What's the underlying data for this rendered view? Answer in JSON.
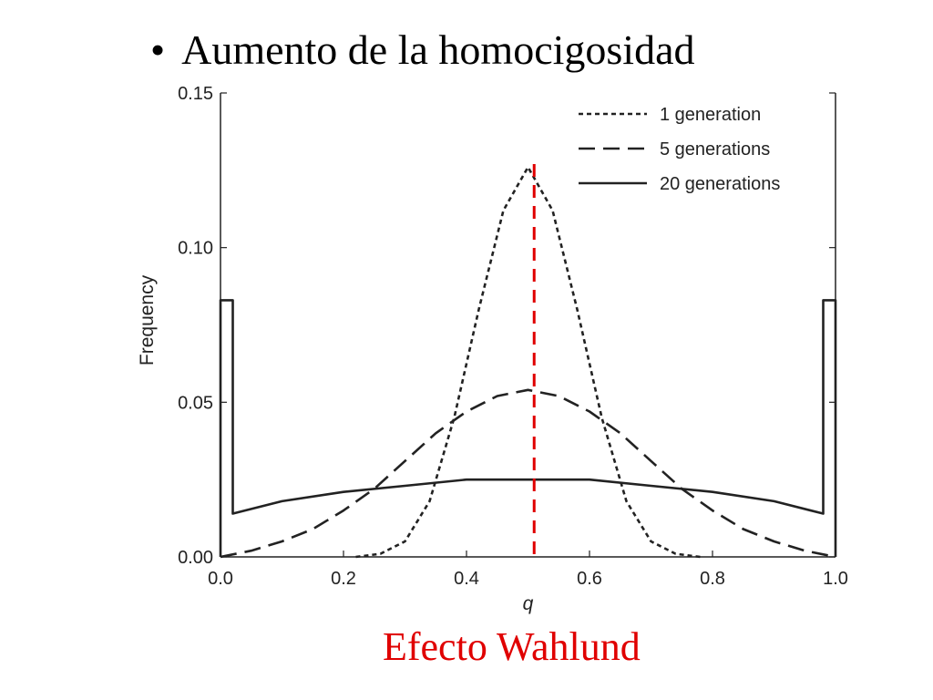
{
  "slide": {
    "bullet": "•",
    "title": "Aumento de la homocigosidad",
    "caption": "Efecto Wahlund"
  },
  "colors": {
    "caption": "#e00000",
    "marker": "#e00000",
    "ink": "#222222"
  },
  "chart_data": {
    "type": "line",
    "title": "",
    "xlabel": "q",
    "ylabel": "Frequency",
    "xlim": [
      0.0,
      1.0
    ],
    "ylim": [
      0.0,
      0.15
    ],
    "xticks": [
      "0.0",
      "0.2",
      "0.4",
      "0.6",
      "0.8",
      "1.0"
    ],
    "yticks": [
      "0.00",
      "0.05",
      "0.10",
      "0.15"
    ],
    "grid": false,
    "legend_position": "top-right",
    "series": [
      {
        "name": "1 generation",
        "style": "dotted",
        "x": [
          0.22,
          0.26,
          0.3,
          0.34,
          0.38,
          0.42,
          0.46,
          0.5,
          0.54,
          0.58,
          0.62,
          0.66,
          0.7,
          0.74,
          0.78
        ],
        "y": [
          0.0,
          0.001,
          0.005,
          0.018,
          0.045,
          0.08,
          0.112,
          0.126,
          0.112,
          0.08,
          0.045,
          0.018,
          0.005,
          0.001,
          0.0
        ]
      },
      {
        "name": "5 generations",
        "style": "dashed",
        "x": [
          0.0,
          0.05,
          0.1,
          0.15,
          0.2,
          0.25,
          0.3,
          0.35,
          0.4,
          0.45,
          0.5,
          0.55,
          0.6,
          0.65,
          0.7,
          0.75,
          0.8,
          0.85,
          0.9,
          0.95,
          1.0
        ],
        "y": [
          0.0,
          0.002,
          0.005,
          0.009,
          0.015,
          0.022,
          0.031,
          0.04,
          0.047,
          0.052,
          0.054,
          0.052,
          0.047,
          0.04,
          0.031,
          0.022,
          0.015,
          0.009,
          0.005,
          0.002,
          0.0
        ]
      },
      {
        "name": "20 generations",
        "style": "solid",
        "x": [
          0.0,
          0.0,
          0.02,
          0.02,
          0.1,
          0.2,
          0.3,
          0.4,
          0.5,
          0.6,
          0.7,
          0.8,
          0.9,
          0.98,
          0.98,
          1.0,
          1.0
        ],
        "y": [
          0.0,
          0.083,
          0.083,
          0.014,
          0.018,
          0.021,
          0.023,
          0.025,
          0.025,
          0.025,
          0.023,
          0.021,
          0.018,
          0.014,
          0.083,
          0.083,
          0.0
        ]
      }
    ],
    "marker_line": {
      "x": 0.51,
      "y_top": 0.127,
      "color": "#e00000",
      "style": "dashed"
    }
  }
}
